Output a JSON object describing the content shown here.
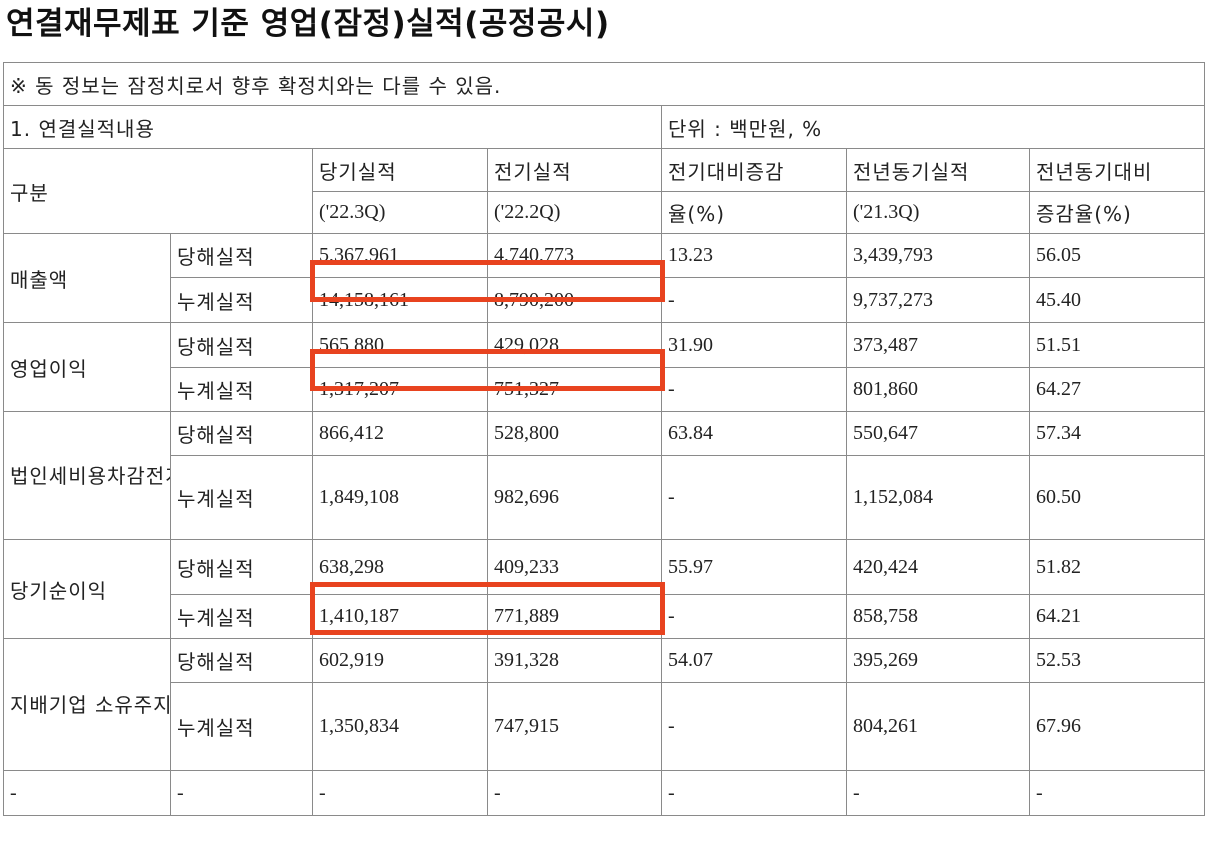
{
  "title": "연결재무제표 기준 영업(잠정)실적(공정공시)",
  "notice": "※ 동 정보는 잠정치로서 향후 확정치와는 다를 수 있음.",
  "section": "1. 연결실적내용",
  "unit": "단위 : 백만원, %",
  "headers": {
    "category": "구분",
    "current_label": "당기실적",
    "current_period": "('22.3Q)",
    "previous_label": "전기실적",
    "previous_period": "('22.2Q)",
    "qoq_line1": "전기대비증감",
    "qoq_line2": "율(%)",
    "yoy_label": "전년동기실적",
    "yoy_period": "('21.3Q)",
    "yoy_rate_line1": "전년동기대비",
    "yoy_rate_line2": "증감율(%)"
  },
  "groups": [
    {
      "name": "매출액",
      "rows": [
        {
          "type": "당해실적",
          "current": "5,367,961",
          "previous": "4,740,773",
          "qoq": "13.23",
          "yoy": "3,439,793",
          "yoy_rate": "56.05"
        },
        {
          "type": "누계실적",
          "current": "14,158,161",
          "previous": "8,790,200",
          "qoq": "-",
          "yoy": "9,737,273",
          "yoy_rate": "45.40"
        }
      ]
    },
    {
      "name": "영업이익",
      "rows": [
        {
          "type": "당해실적",
          "current": "565,880",
          "previous": "429,028",
          "qoq": "31.90",
          "yoy": "373,487",
          "yoy_rate": "51.51"
        },
        {
          "type": "누계실적",
          "current": "1,317,207",
          "previous": "751,327",
          "qoq": "-",
          "yoy": "801,860",
          "yoy_rate": "64.27"
        }
      ]
    },
    {
      "name": "법인세비용차감전계속사업이익",
      "rows": [
        {
          "type": "당해실적",
          "current": "866,412",
          "previous": "528,800",
          "qoq": "63.84",
          "yoy": "550,647",
          "yoy_rate": "57.34"
        },
        {
          "type": "누계실적",
          "current": "1,849,108",
          "previous": "982,696",
          "qoq": "-",
          "yoy": "1,152,084",
          "yoy_rate": "60.50"
        }
      ]
    },
    {
      "name": "당기순이익",
      "rows": [
        {
          "type": "당해실적",
          "current": "638,298",
          "previous": "409,233",
          "qoq": "55.97",
          "yoy": "420,424",
          "yoy_rate": "51.82"
        },
        {
          "type": "누계실적",
          "current": "1,410,187",
          "previous": "771,889",
          "qoq": "-",
          "yoy": "858,758",
          "yoy_rate": "64.21"
        }
      ]
    },
    {
      "name": "지배기업 소유주지분 순이익",
      "rows": [
        {
          "type": "당해실적",
          "current": "602,919",
          "previous": "391,328",
          "qoq": "54.07",
          "yoy": "395,269",
          "yoy_rate": "52.53"
        },
        {
          "type": "누계실적",
          "current": "1,350,834",
          "previous": "747,915",
          "qoq": "-",
          "yoy": "804,261",
          "yoy_rate": "67.96"
        }
      ]
    }
  ],
  "blank_row": [
    "-",
    "-",
    "-",
    "-",
    "-",
    "-"
  ],
  "colors": {
    "highlight": "#e8431f",
    "border": "#8a8a8a"
  }
}
